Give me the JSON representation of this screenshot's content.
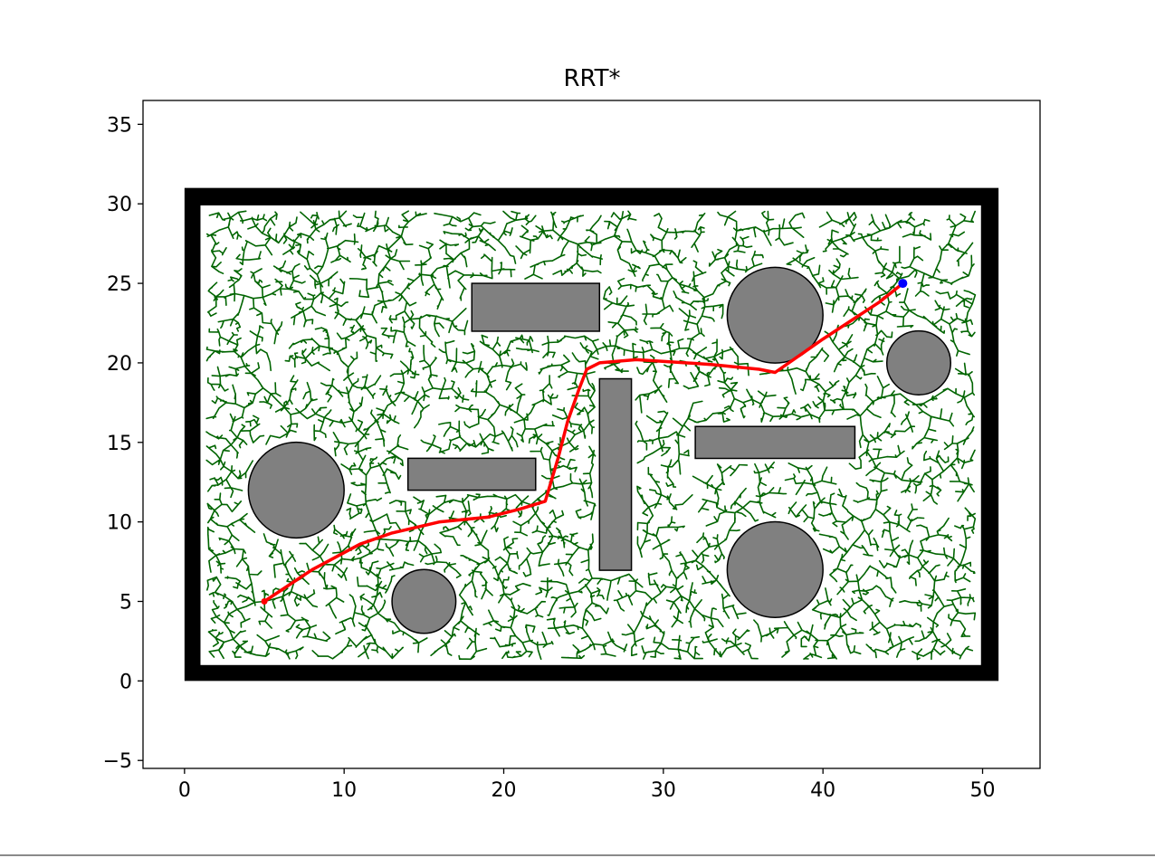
{
  "chart_data": {
    "type": "path-planning",
    "title": "RRT*",
    "xlabel": "",
    "ylabel": "",
    "xlim": [
      -2.6,
      53.6
    ],
    "ylim": [
      -5.5,
      36.5
    ],
    "xticks": [
      0,
      10,
      20,
      30,
      40,
      50
    ],
    "yticks": [
      -5,
      0,
      5,
      10,
      15,
      20,
      25,
      30,
      35
    ],
    "xtick_labels": [
      "0",
      "10",
      "20",
      "30",
      "40",
      "50"
    ],
    "ytick_labels": [
      "−5",
      "0",
      "5",
      "10",
      "15",
      "20",
      "25",
      "30",
      "35"
    ],
    "grid": false,
    "boundary": {
      "outer": [
        0,
        0,
        51,
        31
      ],
      "inner": [
        1,
        1,
        49.9,
        29.9
      ]
    },
    "circles": [
      {
        "cx": 7,
        "cy": 12,
        "r": 3
      },
      {
        "cx": 15,
        "cy": 5,
        "r": 2
      },
      {
        "cx": 37,
        "cy": 23,
        "r": 3
      },
      {
        "cx": 46,
        "cy": 20,
        "r": 2
      },
      {
        "cx": 37,
        "cy": 7,
        "r": 3
      }
    ],
    "rectangles": [
      {
        "x": 18,
        "y": 22,
        "w": 8,
        "h": 3
      },
      {
        "x": 14,
        "y": 12,
        "w": 8,
        "h": 2
      },
      {
        "x": 26,
        "y": 7,
        "w": 2,
        "h": 12
      },
      {
        "x": 32,
        "y": 14,
        "w": 10,
        "h": 2
      }
    ],
    "start": [
      5,
      5
    ],
    "goal": [
      45,
      25
    ],
    "path": [
      [
        5,
        5
      ],
      [
        8,
        7
      ],
      [
        11,
        8.6
      ],
      [
        13,
        9.3
      ],
      [
        16,
        10
      ],
      [
        19,
        10.3
      ],
      [
        21,
        10.8
      ],
      [
        22.6,
        11.3
      ],
      [
        23.4,
        14
      ],
      [
        24,
        16.3
      ],
      [
        24.7,
        18.3
      ],
      [
        25.2,
        19.6
      ],
      [
        26,
        20
      ],
      [
        28.3,
        20.2
      ],
      [
        33,
        19.9
      ],
      [
        36,
        19.6
      ],
      [
        37,
        19.4
      ],
      [
        40,
        21.5
      ],
      [
        43.5,
        23.8
      ],
      [
        45,
        25
      ]
    ],
    "colors": {
      "tree": "#006400",
      "path": "#ff0000",
      "goal": "#0000ff",
      "obstacle_fill": "#808080",
      "boundary": "#000000"
    }
  }
}
